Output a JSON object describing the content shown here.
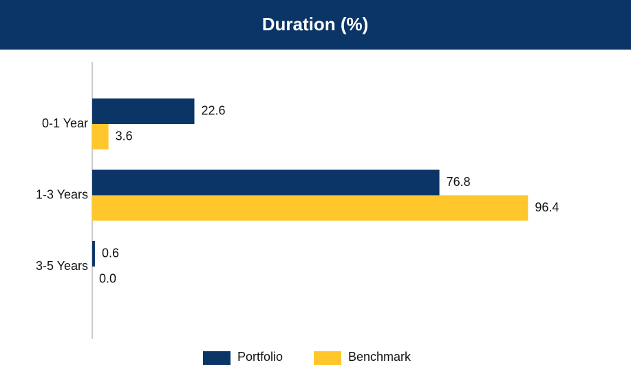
{
  "chart_data": {
    "type": "hbar",
    "title": "Duration (%)",
    "categories": [
      "0-1 Year",
      "1-3 Years",
      "3-5 Years"
    ],
    "series": [
      {
        "name": "Portfolio",
        "color": "#0b3566",
        "values": [
          22.6,
          76.8,
          0.6
        ],
        "value_labels": [
          "22.6",
          "76.8",
          "0.6"
        ]
      },
      {
        "name": "Benchmark",
        "color": "#ffc72c",
        "values": [
          3.6,
          96.4,
          0
        ],
        "value_labels": [
          "3.6",
          "96.4",
          "0.0"
        ]
      }
    ],
    "xlim": [
      0,
      100
    ]
  }
}
